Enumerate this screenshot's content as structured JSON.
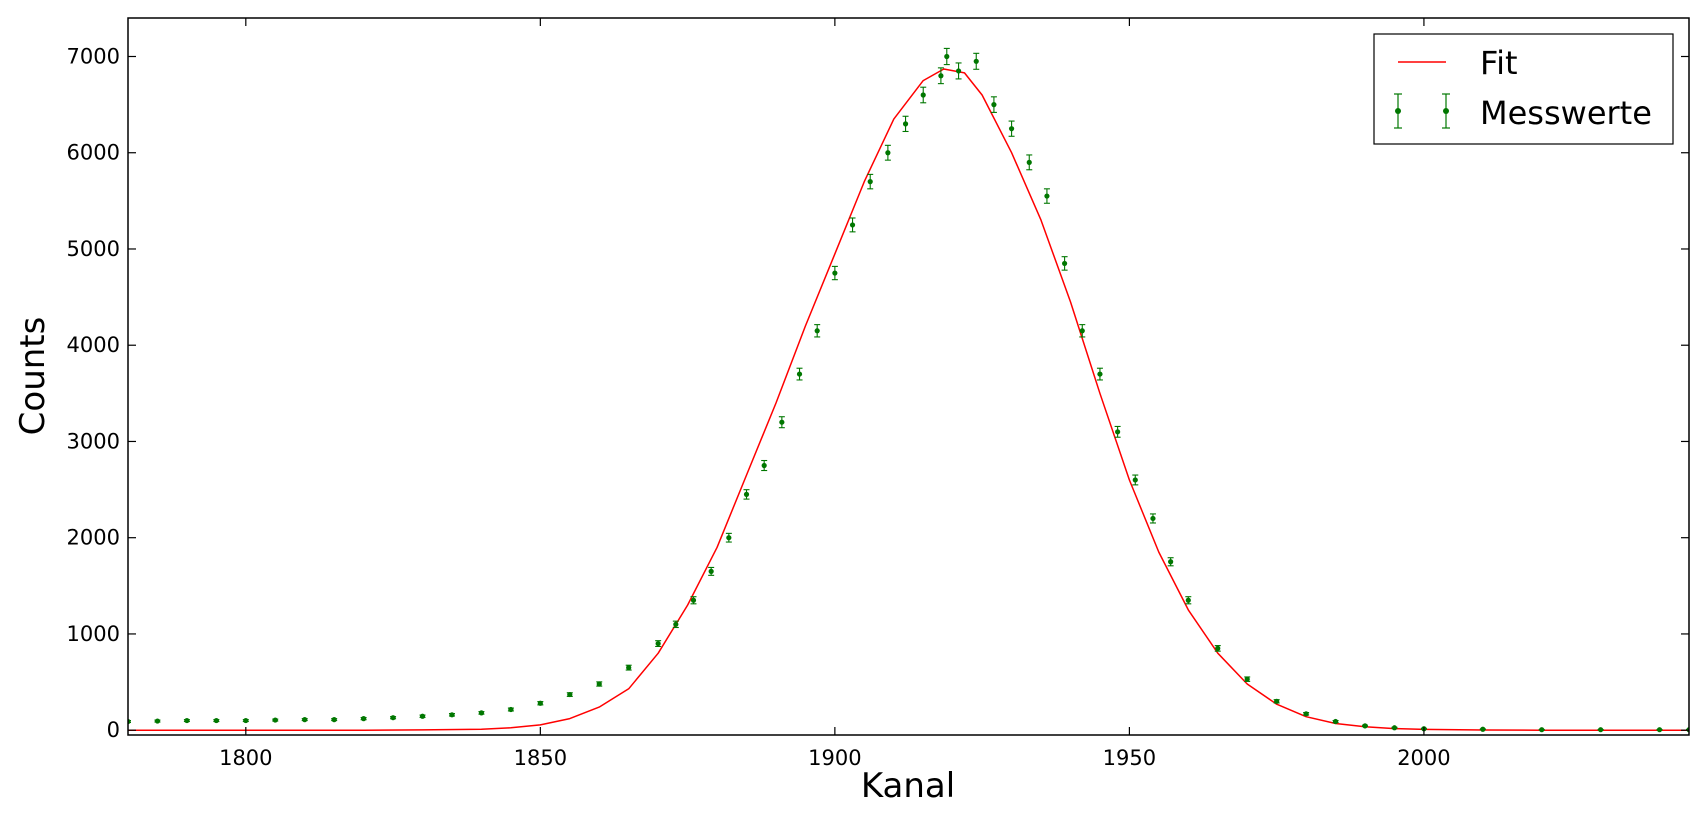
{
  "chart_data": {
    "type": "scatter",
    "xlabel": "Kanal",
    "ylabel": "Counts",
    "xlim": [
      1780,
      2045
    ],
    "ylim": [
      -50,
      7400
    ],
    "xticks": [
      1800,
      1850,
      1900,
      1950,
      2000
    ],
    "yticks": [
      0,
      1000,
      2000,
      3000,
      4000,
      5000,
      6000,
      7000
    ],
    "legend_position": "top-right",
    "grid": false,
    "colors": {
      "fit": "#ff0000",
      "data": "#007700"
    },
    "series": [
      {
        "name": "Fit",
        "kind": "line",
        "x": [
          1780,
          1800,
          1820,
          1830,
          1840,
          1845,
          1850,
          1855,
          1860,
          1865,
          1870,
          1875,
          1880,
          1885,
          1890,
          1895,
          1900,
          1905,
          1910,
          1915,
          1918.5,
          1922,
          1925,
          1930,
          1935,
          1940,
          1945,
          1950,
          1955,
          1960,
          1965,
          1970,
          1975,
          1980,
          1985,
          1990,
          1995,
          2000,
          2010,
          2020,
          2045
        ],
        "y": [
          0,
          0,
          0,
          3,
          10,
          25,
          55,
          120,
          240,
          430,
          800,
          1300,
          1900,
          2650,
          3400,
          4200,
          4950,
          5700,
          6350,
          6750,
          6870,
          6830,
          6600,
          6000,
          5300,
          4450,
          3500,
          2600,
          1850,
          1250,
          800,
          480,
          270,
          140,
          70,
          35,
          17,
          8,
          2,
          0,
          0
        ]
      },
      {
        "name": "Messwerte",
        "kind": "errorbar",
        "x": [
          1780,
          1785,
          1790,
          1795,
          1800,
          1805,
          1810,
          1815,
          1820,
          1825,
          1830,
          1835,
          1840,
          1845,
          1850,
          1855,
          1860,
          1865,
          1870,
          1873,
          1876,
          1879,
          1882,
          1885,
          1888,
          1891,
          1894,
          1897,
          1900,
          1903,
          1906,
          1909,
          1912,
          1915,
          1918,
          1919,
          1921,
          1924,
          1927,
          1930,
          1933,
          1936,
          1939,
          1942,
          1945,
          1948,
          1951,
          1954,
          1957,
          1960,
          1965,
          1970,
          1975,
          1980,
          1985,
          1990,
          1995,
          2000,
          2010,
          2020,
          2030,
          2040,
          2045
        ],
        "y": [
          90,
          95,
          100,
          100,
          100,
          105,
          110,
          110,
          120,
          130,
          145,
          160,
          180,
          215,
          280,
          370,
          480,
          650,
          900,
          1100,
          1350,
          1650,
          2000,
          2450,
          2750,
          3200,
          3700,
          4150,
          4750,
          5250,
          5700,
          6000,
          6300,
          6600,
          6800,
          7000,
          6850,
          6950,
          6500,
          6250,
          5900,
          5550,
          4850,
          4150,
          3700,
          3100,
          2600,
          2200,
          1750,
          1350,
          850,
          530,
          300,
          170,
          90,
          45,
          25,
          15,
          10,
          5,
          5,
          5,
          5
        ],
        "errors": [
          10,
          10,
          10,
          10,
          10,
          10,
          10,
          10,
          11,
          11,
          12,
          13,
          13,
          15,
          17,
          19,
          22,
          25,
          30,
          33,
          37,
          41,
          45,
          49,
          52,
          57,
          61,
          64,
          69,
          72,
          75,
          77,
          79,
          81,
          82,
          84,
          83,
          83,
          81,
          79,
          77,
          75,
          70,
          64,
          61,
          56,
          51,
          47,
          42,
          37,
          29,
          23,
          17,
          13,
          10,
          7,
          5,
          4,
          3,
          2,
          2,
          2,
          2
        ]
      }
    ]
  }
}
